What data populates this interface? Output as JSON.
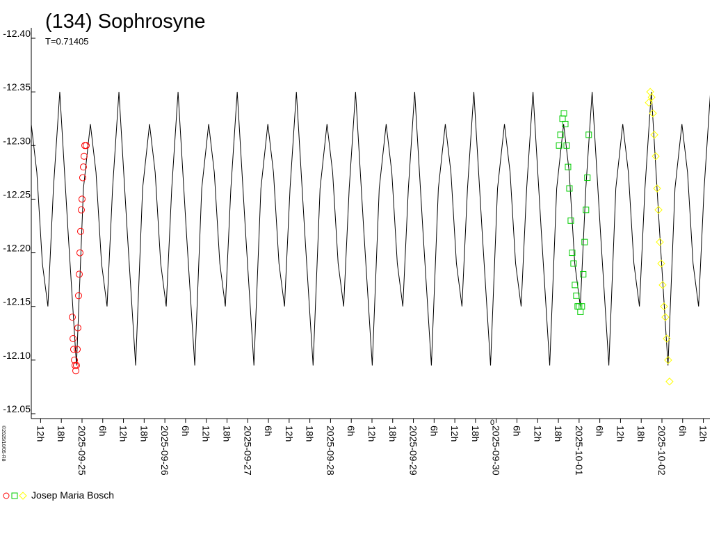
{
  "chart_data": {
    "type": "scatter",
    "title": "(134) Sophrosyne",
    "subtitle": "T=0.71405",
    "credit": "©2025/10/05-R8",
    "axis_note": "0",
    "ylim": [
      -12.05,
      -12.4
    ],
    "yticks": [
      {
        "value": -12.4,
        "label": "-12.40"
      },
      -12.35,
      {
        "value": -12.3,
        "label": "-12.30"
      },
      -12.25,
      {
        "value": -12.2,
        "label": "-12.20"
      },
      -12.15,
      {
        "value": -12.1,
        "label": "-12.10"
      },
      -12.05
    ],
    "xlim": [
      -14.7,
      181.9
    ],
    "xticks": [
      {
        "value": -12,
        "label": "12h"
      },
      {
        "value": -6,
        "label": "18h"
      },
      {
        "value": 0,
        "label": "2025-09-25"
      },
      {
        "value": 6,
        "label": "6h"
      },
      {
        "value": 12,
        "label": "12h"
      },
      {
        "value": 18,
        "label": "18h"
      },
      {
        "value": 24,
        "label": "2025-09-26"
      },
      {
        "value": 30,
        "label": "6h"
      },
      {
        "value": 36,
        "label": "12h"
      },
      {
        "value": 42,
        "label": "18h"
      },
      {
        "value": 48,
        "label": "2025-09-27"
      },
      {
        "value": 54,
        "label": "6h"
      },
      {
        "value": 60,
        "label": "12h"
      },
      {
        "value": 66,
        "label": "18h"
      },
      {
        "value": 72,
        "label": "2025-09-28"
      },
      {
        "value": 78,
        "label": "6h"
      },
      {
        "value": 84,
        "label": "12h"
      },
      {
        "value": 90,
        "label": "18h"
      },
      {
        "value": 96,
        "label": "2025-09-29"
      },
      {
        "value": 102,
        "label": "6h"
      },
      {
        "value": 108,
        "label": "12h"
      },
      {
        "value": 114,
        "label": "18h"
      },
      {
        "value": 120,
        "label": "2025-09-30"
      },
      {
        "value": 126,
        "label": "6h"
      },
      {
        "value": 132,
        "label": "12h"
      },
      {
        "value": 138,
        "label": "18h"
      },
      {
        "value": 144,
        "label": "2025-10-01"
      },
      {
        "value": 150,
        "label": "6h"
      },
      {
        "value": 156,
        "label": "12h"
      },
      {
        "value": 162,
        "label": "18h"
      },
      {
        "value": 168,
        "label": "2025-10-02"
      },
      {
        "value": 174,
        "label": "6h"
      },
      {
        "value": 180,
        "label": "12h"
      }
    ],
    "model": {
      "color": "#000000",
      "x": [
        -14.72,
        -13.09,
        -11.49,
        -9.89,
        -8.29,
        -6.45,
        -4.05,
        -1.61,
        0.41,
        2.42,
        4.05,
        5.65,
        7.25,
        8.85,
        10.69,
        13.09,
        15.53,
        17.55,
        19.56,
        21.19,
        22.79,
        24.39,
        25.99,
        27.82,
        30.22,
        32.66,
        34.68,
        36.69,
        38.32,
        39.92,
        41.52,
        43.12,
        44.96,
        47.36,
        49.8,
        51.82,
        53.83,
        55.46,
        57.06,
        58.66,
        60.26,
        62.1,
        64.5,
        66.94,
        68.96,
        70.97,
        72.6,
        74.2,
        75.8,
        77.4,
        79.24,
        81.64,
        84.08,
        86.1,
        88.11,
        89.74,
        91.34,
        92.94,
        94.54,
        96.37,
        98.77,
        101.21,
        103.23,
        105.24,
        106.87,
        108.47,
        110.07,
        111.67,
        113.51,
        115.91,
        118.35,
        120.37,
        122.38,
        124.01,
        125.61,
        127.21,
        128.81,
        130.65,
        133.05,
        135.49,
        137.51,
        139.52,
        141.15,
        142.75,
        144.35,
        145.95,
        147.78,
        150.18,
        152.62,
        154.64,
        156.65,
        158.28,
        159.88,
        161.48,
        163.08,
        164.92,
        167.32,
        169.76,
        171.78,
        173.79,
        175.42,
        177.02,
        178.62,
        180.22,
        182.06
      ],
      "values": [
        -12.32,
        -12.275,
        -12.19,
        -12.15,
        -12.26,
        -12.35,
        -12.22,
        -12.095,
        -12.26,
        -12.32,
        -12.275,
        -12.19,
        -12.15,
        -12.26,
        -12.35,
        -12.22,
        -12.095,
        -12.26,
        -12.32,
        -12.275,
        -12.19,
        -12.15,
        -12.26,
        -12.35,
        -12.22,
        -12.095,
        -12.26,
        -12.32,
        -12.275,
        -12.19,
        -12.15,
        -12.26,
        -12.35,
        -12.22,
        -12.095,
        -12.26,
        -12.32,
        -12.275,
        -12.19,
        -12.15,
        -12.26,
        -12.35,
        -12.22,
        -12.095,
        -12.26,
        -12.32,
        -12.275,
        -12.19,
        -12.15,
        -12.26,
        -12.35,
        -12.22,
        -12.095,
        -12.26,
        -12.32,
        -12.275,
        -12.19,
        -12.15,
        -12.26,
        -12.35,
        -12.22,
        -12.095,
        -12.26,
        -12.32,
        -12.275,
        -12.19,
        -12.15,
        -12.26,
        -12.35,
        -12.22,
        -12.095,
        -12.26,
        -12.32,
        -12.275,
        -12.19,
        -12.15,
        -12.26,
        -12.35,
        -12.22,
        -12.095,
        -12.26,
        -12.32,
        -12.275,
        -12.19,
        -12.15,
        -12.26,
        -12.35,
        -12.22,
        -12.095,
        -12.26,
        -12.32,
        -12.275,
        -12.19,
        -12.15,
        -12.26,
        -12.35,
        -12.22,
        -12.095,
        -12.26,
        -12.32,
        -12.275,
        -12.19,
        -12.15,
        -12.26,
        -12.35
      ]
    },
    "series": [
      {
        "color": "#ff0000",
        "marker": "circle",
        "x": [
          -2.82,
          -2.6,
          -2.42,
          -2.2,
          -2.02,
          -1.8,
          -1.61,
          -1.4,
          -1.21,
          -1.0,
          -0.81,
          -0.6,
          -0.4,
          -0.2,
          0,
          0.2,
          0.4,
          0.6,
          0.81,
          1.21
        ],
        "values": [
          -12.14,
          -12.12,
          -12.11,
          -12.1,
          -12.095,
          -12.09,
          -12.095,
          -12.11,
          -12.13,
          -12.16,
          -12.18,
          -12.2,
          -12.22,
          -12.24,
          -12.25,
          -12.27,
          -12.28,
          -12.29,
          -12.3,
          -12.3
        ]
      },
      {
        "color": "#00cc00",
        "marker": "square",
        "x": [
          138.2,
          138.6,
          139.2,
          139.6,
          140.0,
          140.4,
          140.8,
          141.2,
          141.6,
          142.0,
          142.4,
          142.8,
          143.2,
          143.6,
          144.0,
          144.4,
          144.8,
          145.2,
          145.6,
          146.0,
          146.4,
          146.8
        ],
        "values": [
          -12.3,
          -12.31,
          -12.325,
          -12.33,
          -12.32,
          -12.3,
          -12.28,
          -12.26,
          -12.23,
          -12.2,
          -12.19,
          -12.17,
          -12.16,
          -12.15,
          -12.15,
          -12.145,
          -12.15,
          -12.18,
          -12.21,
          -12.24,
          -12.27,
          -12.31
        ]
      },
      {
        "color": "#ffff00",
        "marker": "diamond",
        "x": [
          164.2,
          164.6,
          165.0,
          165.4,
          165.8,
          166.2,
          166.6,
          167.0,
          167.4,
          167.8,
          168.2,
          168.6,
          169.0,
          169.4,
          169.8,
          170.2
        ],
        "values": [
          -12.34,
          -12.35,
          -12.345,
          -12.33,
          -12.31,
          -12.29,
          -12.26,
          -12.24,
          -12.21,
          -12.19,
          -12.17,
          -12.15,
          -12.14,
          -12.12,
          -12.1,
          -12.08
        ]
      }
    ],
    "legend": {
      "label": "Josep Maria Bosch",
      "position": "bottom-left"
    }
  }
}
